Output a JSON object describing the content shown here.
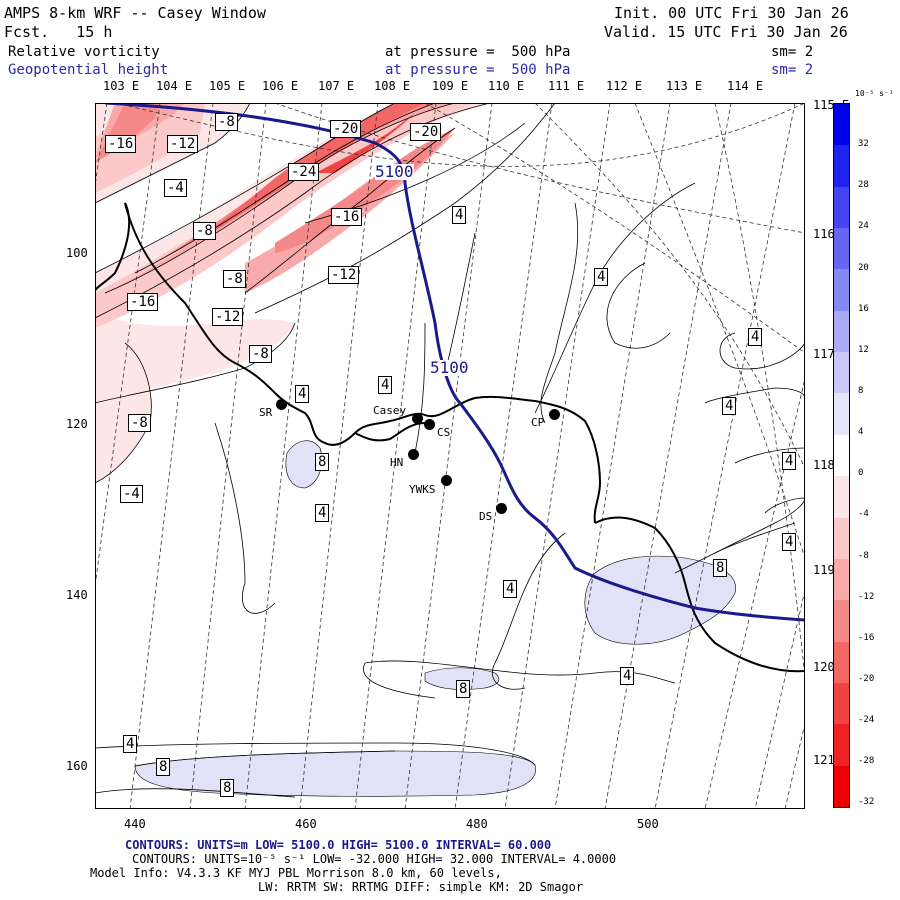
{
  "header": {
    "title": "AMPS 8-km WRF -- Casey Window",
    "forecast": "Fcst.   15 h",
    "init": "Init. 00 UTC Fri 30 Jan 26",
    "valid": "Valid. 15 UTC Fri 30 Jan 26",
    "field1_name": "Relative vorticity",
    "field1_level": "at pressure =  500 hPa",
    "field1_sm": "sm= 2",
    "field2_name": "Geopotential height",
    "field2_level": "at pressure =  500 hPa",
    "field2_sm": "sm= 2"
  },
  "axes": {
    "top_lon": [
      "103 E",
      "104 E",
      "105 E",
      "106 E",
      "107 E",
      "108 E",
      "109 E",
      "110 E",
      "111 E",
      "112 E",
      "113 E",
      "114 E"
    ],
    "right_lon": [
      "115 E",
      "116 E",
      "117 E",
      "118 E",
      "119 E",
      "120 E",
      "121 E"
    ],
    "left_ticks": [
      "100",
      "120",
      "140",
      "160"
    ],
    "bottom_ticks": [
      "440",
      "460",
      "480",
      "500"
    ]
  },
  "colorbar": {
    "unit": "10⁻⁵ s⁻¹",
    "labels": [
      "32",
      "28",
      "24",
      "20",
      "16",
      "12",
      "8",
      "4",
      "0",
      "-4",
      "-8",
      "-12",
      "-16",
      "-20",
      "-24",
      "-28",
      "-32"
    ],
    "colors": [
      "#0000e8",
      "#2222ee",
      "#4444f0",
      "#6666f2",
      "#8888f4",
      "#aaaaf6",
      "#c9c9f8",
      "#e6e6fb",
      "#ffffff",
      "#fde6e6",
      "#fbc9c9",
      "#f8aaaa",
      "#f58888",
      "#f26666",
      "#f04444",
      "#ee2222",
      "#ee0000"
    ]
  },
  "contour_labels_vort": [
    "-8",
    "-16",
    "-12",
    "-20",
    "-20",
    "-4",
    "-24",
    "-8",
    "-16",
    "-12",
    "-8",
    "-16",
    "-12",
    "-8",
    "4",
    "4",
    "4",
    "4",
    "4",
    "4",
    "4",
    "-8",
    "-4",
    "8",
    "4",
    "8",
    "4",
    "4",
    "8",
    "4",
    "8",
    "8",
    "4",
    "4"
  ],
  "contour_labels_height": [
    "5100",
    "5100"
  ],
  "stations": [
    {
      "code": "SR"
    },
    {
      "code": "Casey"
    },
    {
      "code": "CS"
    },
    {
      "code": "HN"
    },
    {
      "code": "YWKS"
    },
    {
      "code": "CP"
    },
    {
      "code": "DS"
    }
  ],
  "footer": {
    "contours_height": "CONTOURS:  UNITS=m  LOW=  5100.0          HIGH=  5100.0        INTERVAL=   60.000",
    "contours_vort": "CONTOURS:  UNITS=10⁻⁵ s⁻¹  LOW= -32.000       HIGH=  32.000       INTERVAL=   4.0000",
    "model_info": "Model Info: V4.3.3   KF     MYJ PBL  Morrison            8.0 km,  60 levels,",
    "model_info2": "LW: RRTM SW: RRTMG   DIFF: simple KM: 2D Smagor"
  }
}
